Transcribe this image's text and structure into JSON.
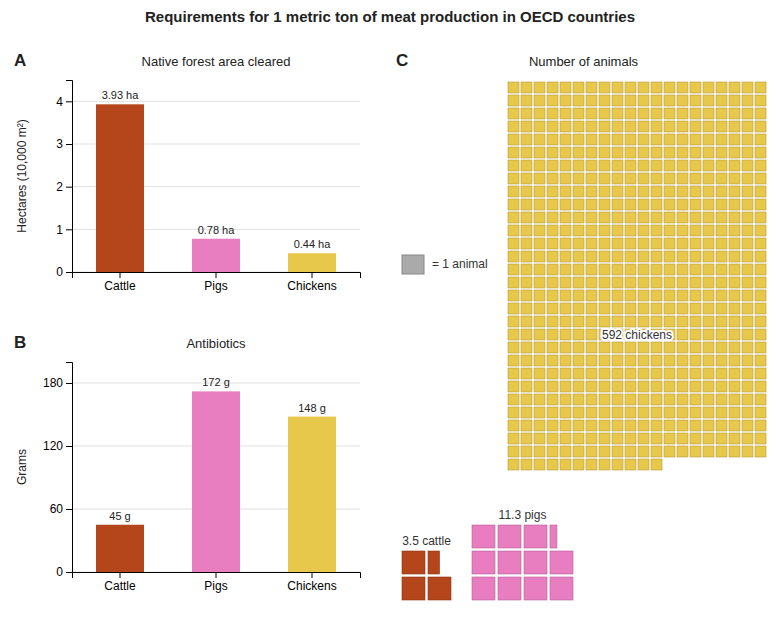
{
  "title": "Requirements for 1 metric ton of meat production in OECD countries",
  "chart_data": [
    {
      "type": "bar",
      "panel": "A",
      "title": "Native forest area cleared",
      "ylabel": "Hectares (10,000 m²)",
      "categories": [
        "Cattle",
        "Pigs",
        "Chickens"
      ],
      "values": [
        3.93,
        0.78,
        0.44
      ],
      "value_labels": [
        "3.93 ha",
        "0.78 ha",
        "0.44 ha"
      ],
      "data_labels": true,
      "colors": [
        "#b5451b",
        "#e87dc0",
        "#e8c84a"
      ],
      "ylim": [
        0,
        4.5
      ],
      "yticks": [
        0,
        1,
        2,
        3,
        4
      ],
      "grid": true
    },
    {
      "type": "bar",
      "panel": "B",
      "title": "Antibiotics",
      "ylabel": "Grams",
      "categories": [
        "Cattle",
        "Pigs",
        "Chickens"
      ],
      "values": [
        45,
        172,
        148
      ],
      "value_labels": [
        "45 g",
        "172 g",
        "148 g"
      ],
      "data_labels": true,
      "colors": [
        "#b5451b",
        "#e87dc0",
        "#e8c84a"
      ],
      "ylim": [
        0,
        200
      ],
      "yticks": [
        0,
        60,
        120,
        180
      ],
      "grid": true
    },
    {
      "type": "waffle",
      "panel": "C",
      "title": "Number of animals",
      "values": [
        3.5,
        11.3,
        592
      ],
      "value_labels": [
        "3.5 cattle",
        "11.3 pigs",
        "592 chickens"
      ],
      "data_labels": true,
      "colors": [
        "#b5451b",
        "#e87dc0",
        "#e8c84a"
      ],
      "annotations": [
        "= 1 animal"
      ]
    }
  ]
}
